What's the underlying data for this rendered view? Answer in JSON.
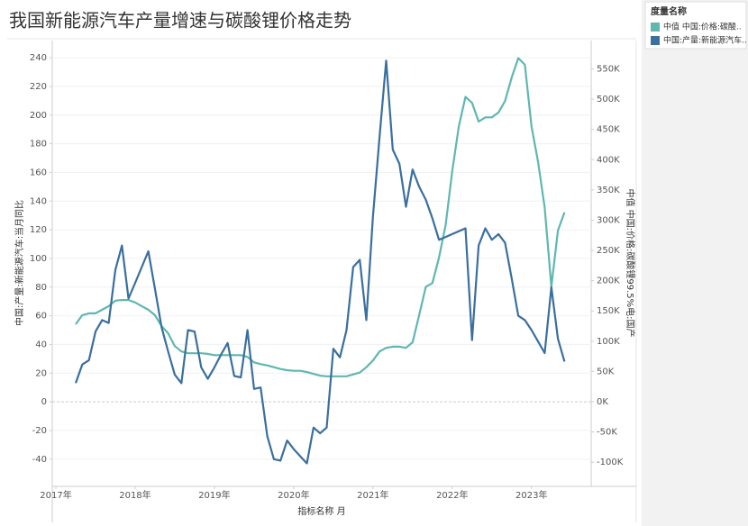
{
  "chart_data": {
    "type": "line",
    "title": "我国新能源汽车产量增速与碳酸锂价格走势",
    "x_label": "指标名称 月",
    "y_label": "中国:产量:新能源汽车:当月同比",
    "y2_label": "中值 中国:价格:碳酸锂99.5%电:国产",
    "legend_title": "度量名称",
    "legend_position": "right",
    "grid": true,
    "categories": [
      "2017年",
      null,
      null,
      null,
      null,
      null,
      null,
      null,
      null,
      null,
      null,
      null,
      "2018年",
      null,
      null,
      null,
      null,
      null,
      null,
      null,
      null,
      null,
      null,
      null,
      "2019年",
      null,
      null,
      null,
      null,
      null,
      null,
      null,
      null,
      null,
      null,
      null,
      "2020年",
      null,
      null,
      null,
      null,
      null,
      null,
      null,
      null,
      null,
      null,
      null,
      "2021年",
      null,
      null,
      null,
      null,
      null,
      null,
      null,
      null,
      null,
      null,
      null,
      "2022年",
      null,
      null,
      null,
      null,
      null,
      null,
      null,
      null,
      null,
      null,
      null,
      "2023年",
      null,
      null,
      null,
      null,
      null
    ],
    "series": [
      {
        "name": "中值 中国:价格:碳酸..",
        "color": "#5fb7b0",
        "axis": "y2",
        "values": [
          null,
          null,
          null,
          128000,
          143000,
          146000,
          146000,
          152000,
          158000,
          167000,
          168000,
          168000,
          164000,
          158000,
          152000,
          143000,
          125000,
          113000,
          92000,
          83000,
          80000,
          80000,
          80000,
          79000,
          77000,
          77000,
          77000,
          77000,
          77000,
          74000,
          65000,
          62000,
          60000,
          57000,
          54000,
          52000,
          51000,
          51000,
          49000,
          46000,
          43000,
          42000,
          42000,
          42000,
          42000,
          45000,
          48000,
          57000,
          68000,
          83000,
          89000,
          91000,
          91000,
          89000,
          98000,
          143000,
          190000,
          196000,
          238000,
          292000,
          381000,
          455000,
          504000,
          494000,
          463000,
          470000,
          470000,
          478000,
          497000,
          536000,
          568000,
          557000,
          455000,
          396000,
          321000,
          190000,
          283000,
          313000
        ]
      },
      {
        "name": "中国:产量:新能源汽车..",
        "color": "#3a6f9e",
        "axis": "y",
        "values": [
          null,
          null,
          null,
          13,
          26,
          29,
          49,
          57,
          55,
          92,
          109,
          72,
          83,
          94,
          105,
          79,
          52,
          35,
          19,
          13,
          50,
          49,
          24,
          16,
          24,
          33,
          41,
          18,
          17,
          50,
          9,
          10,
          -24,
          -40,
          -41,
          -27,
          -33,
          -38,
          -43,
          -18,
          -22,
          -18,
          37,
          31,
          50,
          94,
          99,
          57,
          129,
          185,
          238,
          176,
          166,
          136,
          162,
          150,
          141,
          128,
          113,
          115,
          117,
          119,
          121,
          43,
          109,
          121,
          113,
          117,
          111,
          86,
          60,
          57,
          50,
          42,
          34,
          80,
          44,
          28
        ]
      }
    ],
    "ylim": [
      -59,
      252
    ],
    "yticks": [
      -40,
      -20,
      0,
      20,
      40,
      60,
      80,
      100,
      120,
      140,
      160,
      180,
      200,
      220,
      240
    ],
    "y2lim": [
      -140000,
      597000
    ],
    "y2ticks": [
      {
        "value": -100000,
        "label": "-100K"
      },
      {
        "value": -50000,
        "label": "-50K"
      },
      {
        "value": 0,
        "label": "0K"
      },
      {
        "value": 50000,
        "label": "50K"
      },
      {
        "value": 100000,
        "label": "100K"
      },
      {
        "value": 150000,
        "label": "150K"
      },
      {
        "value": 200000,
        "label": "200K"
      },
      {
        "value": 250000,
        "label": "250K"
      },
      {
        "value": 300000,
        "label": "300K"
      },
      {
        "value": 350000,
        "label": "350K"
      },
      {
        "value": 400000,
        "label": "400K"
      },
      {
        "value": 450000,
        "label": "450K"
      },
      {
        "value": 500000,
        "label": "500K"
      },
      {
        "value": 550000,
        "label": "550K"
      }
    ]
  }
}
